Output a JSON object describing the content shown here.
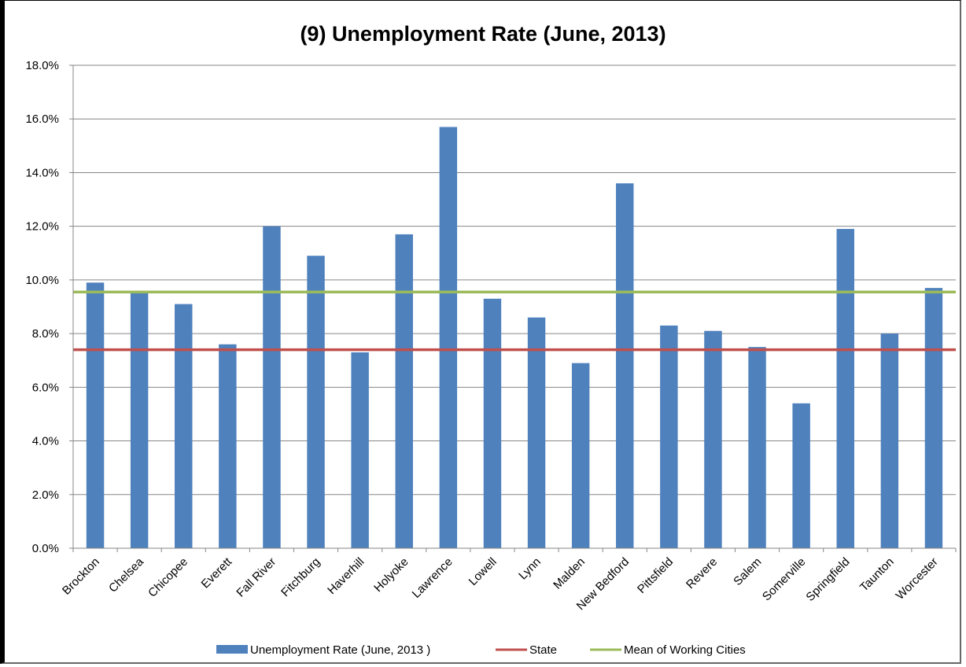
{
  "chart_data": {
    "type": "bar",
    "title": "(9) Unemployment Rate (June, 2013)",
    "xlabel": "",
    "ylabel": "",
    "ylim": [
      0,
      18
    ],
    "y_ticks": [
      "0.0%",
      "2.0%",
      "4.0%",
      "6.0%",
      "8.0%",
      "10.0%",
      "12.0%",
      "14.0%",
      "16.0%",
      "18.0%"
    ],
    "categories": [
      "Brockton",
      "Chelsea",
      "Chicopee",
      "Everett",
      "Fall River",
      "Fitchburg",
      "Haverhill",
      "Holyoke",
      "Lawrence",
      "Lowell",
      "Lynn",
      "Malden",
      "New Bedford",
      "Pittsfield",
      "Revere",
      "Salem",
      "Somerville",
      "Springfield",
      "Taunton",
      "Worcester"
    ],
    "series": [
      {
        "name": "Unemployment Rate (June, 2013 )",
        "type": "bar",
        "color": "#4f81bd",
        "values": [
          9.9,
          9.6,
          9.1,
          7.6,
          12.0,
          10.9,
          7.3,
          11.7,
          15.7,
          9.3,
          8.6,
          6.9,
          13.6,
          8.3,
          8.1,
          7.5,
          5.4,
          11.9,
          8.0,
          9.7
        ]
      },
      {
        "name": "State",
        "type": "line",
        "color": "#c0504d",
        "value": 7.4
      },
      {
        "name": "Mean of Working Cities",
        "type": "line",
        "color": "#9bbb59",
        "value": 9.55
      }
    ],
    "grid": true,
    "legend": "bottom"
  }
}
